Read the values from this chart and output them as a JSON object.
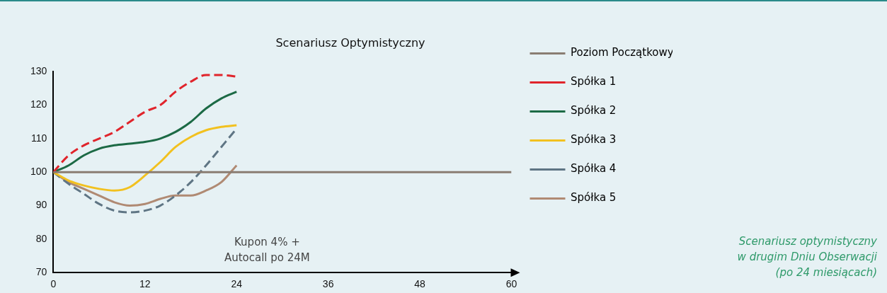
{
  "chart_data": {
    "type": "line",
    "title": "Scenariusz Optymistyczny",
    "x": [
      0,
      2,
      4,
      6,
      8,
      10,
      12,
      14,
      16,
      18,
      20,
      22,
      24
    ],
    "series": [
      {
        "name": "Poziom Początkowy",
        "color": "#8a7d72",
        "x": [
          0,
          60
        ],
        "values": [
          100,
          100
        ],
        "line_style": "solid"
      },
      {
        "name": "Spółka 1",
        "color": "#e0242b",
        "values": [
          100,
          105,
          108,
          110,
          112,
          115,
          118,
          120,
          124,
          127,
          129,
          129,
          128.5
        ],
        "line_style": "dashed"
      },
      {
        "name": "Spółka 2",
        "color": "#1c6a45",
        "values": [
          100,
          102,
          105,
          107,
          108,
          108.5,
          109,
          110,
          112,
          115,
          119,
          122,
          124
        ],
        "line_style": "solid"
      },
      {
        "name": "Spółka 3",
        "color": "#f2c11f",
        "values": [
          100,
          97.5,
          96,
          95,
          94.5,
          95.5,
          99,
          103,
          107.5,
          110.5,
          112.5,
          113.5,
          114
        ],
        "line_style": "solid"
      },
      {
        "name": "Spółka 4",
        "color": "#5f7584",
        "values": [
          100,
          96.5,
          93.5,
          90.5,
          88.5,
          88,
          88.5,
          90,
          93,
          97,
          102,
          107.5,
          113
        ],
        "line_style": "dashed"
      },
      {
        "name": "Spółka 5",
        "color": "#b08a73",
        "values": [
          100,
          97,
          95,
          93,
          91,
          90,
          90.5,
          92,
          93,
          93,
          94.5,
          97,
          102
        ],
        "line_style": "solid"
      }
    ],
    "xlim": [
      0,
      60
    ],
    "xticks": [
      0,
      12,
      24,
      36,
      48,
      60
    ],
    "ylim": [
      70,
      130
    ],
    "yticks": [
      70,
      80,
      90,
      100,
      110,
      120,
      130
    ],
    "grid": false,
    "legend": "right",
    "marker": "none",
    "annotations": [
      "Kupon 4% +\nAutocall po 24M",
      "Scenariusz optymistyczny\nw drugim Dniu Obserwacji\n(po 24 miesiącach)"
    ]
  }
}
